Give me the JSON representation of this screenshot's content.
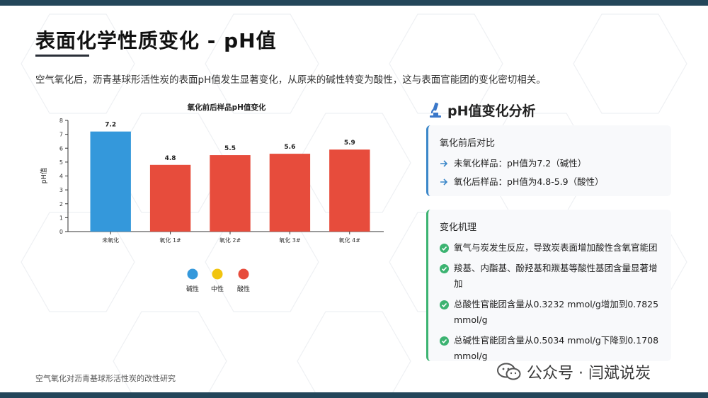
{
  "title": "表面化学性质变化 - pH值",
  "subtitle": "空气氧化后，沥青基球形活性炭的表面pH值发生显著变化，从原来的碱性转变为酸性，这与表面官能团的变化密切相关。",
  "chart_data": {
    "type": "bar",
    "title": "氧化前后样品pH值变化",
    "xlabel": "",
    "ylabel": "pH值",
    "categories": [
      "未氧化",
      "氧化 1#",
      "氧化 2#",
      "氧化 3#",
      "氧化 4#"
    ],
    "values": [
      7.2,
      4.8,
      5.5,
      5.6,
      5.9
    ],
    "value_labels": [
      "7.2",
      "4.8",
      "5.5",
      "5.6",
      "5.9"
    ],
    "bar_colors": [
      "#3498db",
      "#e74c3c",
      "#e74c3c",
      "#e74c3c",
      "#e74c3c"
    ],
    "ylim": [
      0,
      8
    ],
    "yticks": [
      "0",
      "1",
      "2",
      "3",
      "4",
      "5",
      "6",
      "7",
      "8"
    ],
    "grid": false,
    "legend_position": "bottom-center",
    "legend": [
      {
        "label": "碱性",
        "color": "#3498db"
      },
      {
        "label": "中性",
        "color": "#f1c40f"
      },
      {
        "label": "酸性",
        "color": "#e74c3c"
      }
    ]
  },
  "analysis": {
    "title": "pH值变化分析",
    "icon": "microscope-icon",
    "comparison": {
      "heading": "氧化前后对比",
      "items": [
        "未氧化样品：pH值为7.2（碱性）",
        "氧化后样品：pH值为4.8-5.9（酸性）"
      ],
      "bullet_icon": "arrow-right-icon",
      "accent": "#3b87c9"
    },
    "mechanism": {
      "heading": "变化机理",
      "items": [
        "氧气与炭发生反应，导致炭表面增加酸性含氧官能团",
        "羧基、内酯基、酚羟基和羰基等酸性基团含量显著增加",
        "总酸性官能团含量从0.3232 mmol/g增加到0.7825 mmol/g",
        "总碱性官能团含量从0.5034 mmol/g下降到0.1708 mmol/g"
      ],
      "bullet_icon": "check-circle-icon",
      "accent": "#3cb371"
    }
  },
  "footer": "空气氧化对沥青基球形活性炭的改性研究",
  "watermark": "公众号 · 闫斌说炭",
  "colors": {
    "bar_alkaline": "#3498db",
    "bar_acidic": "#e74c3c",
    "header_bar": "#23465a"
  }
}
